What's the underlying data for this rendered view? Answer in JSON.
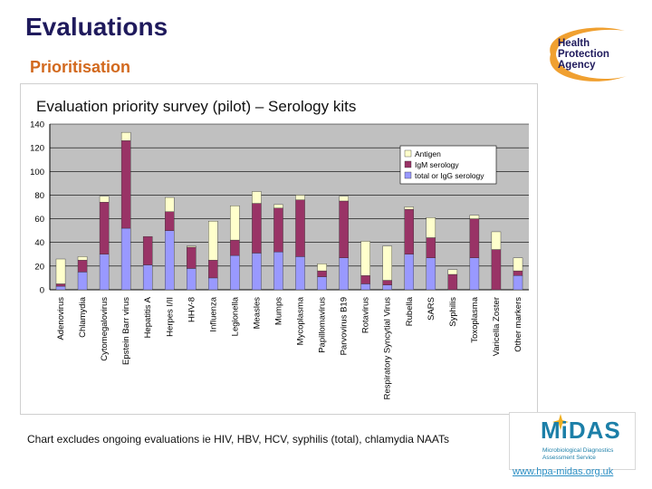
{
  "header": {
    "title": "Evaluations",
    "subtitle": "Prioritisation"
  },
  "logo": {
    "line1": "Health",
    "line2": "Protection",
    "line3": "Agency"
  },
  "footer": {
    "note": "Chart excludes ongoing evaluations ie HIV, HBV, HCV, syphilis (total), chlamydia NAATs",
    "midas_word": "MiDAS",
    "midas_sub_line1": "Microbiological Diagnostics",
    "midas_sub_line2": "Assessment Service",
    "url": "www.hpa-midas.org.uk"
  },
  "colors": {
    "antigen": "#ffffcc",
    "igm": "#993366",
    "igg": "#9999ff",
    "plot_bg": "#c0c0c0",
    "hpa_orange": "#f0a030",
    "hpa_navy": "#1f1a5c"
  },
  "chart_data": {
    "type": "bar",
    "stacked": true,
    "title": "Evaluation priority survey (pilot) – Serology kits",
    "ylim": [
      0,
      140
    ],
    "yticks": [
      0,
      20,
      40,
      60,
      80,
      100,
      120,
      140
    ],
    "grid": true,
    "legend_position": "top-right",
    "categories": [
      "Adenovirus",
      "Chlamydia",
      "Cytomegalovirus",
      "Epstein Barr virus",
      "Hepatitis A",
      "Herpes I/II",
      "HHV-8",
      "Influenza",
      "Legionella",
      "Measles",
      "Mumps",
      "Mycoplasma",
      "Papillomavirus",
      "Parvovirus B19",
      "Rotavirus",
      "Respiratory Syncytial Virus",
      "Rubella",
      "SARS",
      "Syphilis",
      "Toxoplasma",
      "Varicella Zoster",
      "Other markers"
    ],
    "series": [
      {
        "name": "total or IgG serology",
        "color_key": "igg",
        "values": [
          3,
          15,
          30,
          52,
          21,
          50,
          18,
          10,
          29,
          31,
          32,
          28,
          11,
          27,
          5,
          4,
          30,
          27,
          0,
          27,
          0,
          12
        ]
      },
      {
        "name": "IgM serology",
        "color_key": "igm",
        "values": [
          2,
          10,
          44,
          74,
          24,
          16,
          18,
          15,
          13,
          42,
          37,
          48,
          5,
          48,
          7,
          4,
          38,
          17,
          13,
          33,
          34,
          4
        ]
      },
      {
        "name": "Antigen",
        "color_key": "antigen",
        "values": [
          21,
          3,
          5,
          7,
          0,
          12,
          1,
          33,
          29,
          10,
          3,
          4,
          6,
          4,
          29,
          29,
          2,
          17,
          4,
          3,
          15,
          11
        ]
      }
    ],
    "legend_order": [
      "Antigen",
      "IgM serology",
      "total or IgG serology"
    ]
  }
}
